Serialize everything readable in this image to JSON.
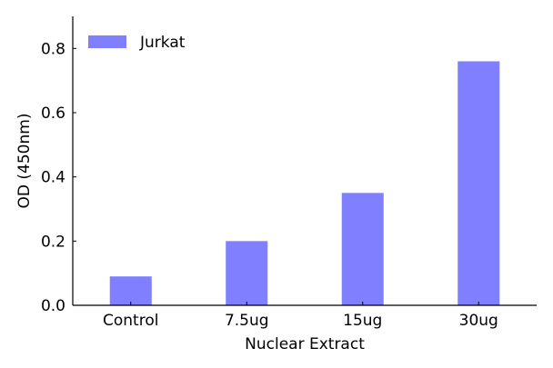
{
  "chart_data": {
    "type": "bar",
    "categories": [
      "Control",
      "7.5ug",
      "15ug",
      "30ug"
    ],
    "series": [
      {
        "name": "Jurkat",
        "values": [
          0.09,
          0.2,
          0.35,
          0.76
        ],
        "color": "#7f7fff"
      }
    ],
    "xlabel": "Nuclear Extract",
    "ylabel": "OD (450nm)",
    "ylim": [
      0,
      0.9
    ],
    "yticks": [
      0.0,
      0.2,
      0.4,
      0.6,
      0.8
    ],
    "ytick_labels": [
      "0.0",
      "0.2",
      "0.4",
      "0.6",
      "0.8"
    ],
    "legend": {
      "position": "top-left",
      "entries": [
        "Jurkat"
      ]
    },
    "grid": false,
    "axis_color": "#000000"
  }
}
